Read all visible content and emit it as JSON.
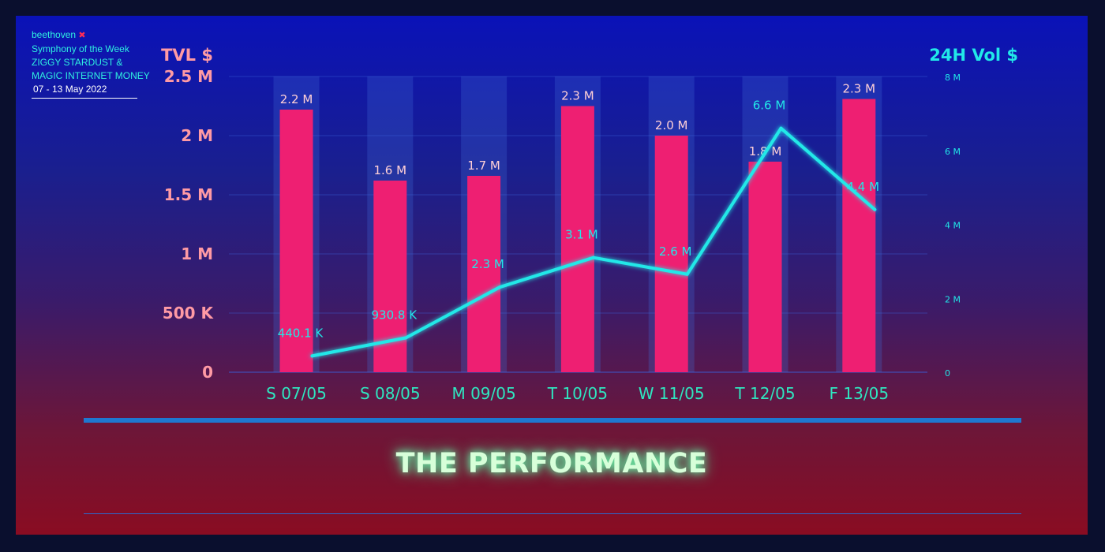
{
  "brand": {
    "name": "beethoven",
    "mark": "✖",
    "line1": "Symphony of the Week",
    "line2": "ZIGGY STARDUST &",
    "line3": "MAGIC INTERNET MONEY",
    "dates": "07 - 13 May 2022"
  },
  "footer": {
    "title": "THE PERFORMANCE"
  },
  "colors": {
    "bar": "#ee1f72",
    "line": "#21e8e8",
    "left_axis": "#ff9aa4",
    "right_axis": "#21e8e8",
    "category": "#2fe6c0",
    "bar_label": "#ffd0d6"
  },
  "chart_data": {
    "type": "bar+line",
    "categories": [
      "S 07/05",
      "S 08/05",
      "M 09/05",
      "T 10/05",
      "W 11/05",
      "T 12/05",
      "F 13/05"
    ],
    "series": [
      {
        "name": "TVL $",
        "type": "bar",
        "axis": "left",
        "values": [
          2.22,
          1.62,
          1.66,
          2.25,
          2.0,
          1.78,
          2.31
        ],
        "labels": [
          "2.2 M",
          "1.6 M",
          "1.7 M",
          "2.3 M",
          "2.0 M",
          "1.8 M",
          "2.3 M"
        ]
      },
      {
        "name": "24H Vol $",
        "type": "line",
        "axis": "right",
        "values": [
          0.4401,
          0.9308,
          2.3,
          3.1,
          2.65,
          6.6,
          4.4
        ],
        "labels": [
          "440.1 K",
          "930.8 K",
          "2.3 M",
          "3.1 M",
          "2.6 M",
          "6.6 M",
          "4.4 M"
        ]
      }
    ],
    "left_axis": {
      "title": "TVL $",
      "min": 0,
      "max": 2.5,
      "ticks": [
        0,
        0.5,
        1,
        1.5,
        2,
        2.5
      ],
      "tick_labels": [
        "0",
        "500 K",
        "1 M",
        "1.5 M",
        "2 M",
        "2.5 M"
      ]
    },
    "right_axis": {
      "title": "24H Vol $",
      "min": 0,
      "max": 8,
      "ticks": [
        0,
        2,
        4,
        6,
        8
      ],
      "tick_labels": [
        "0",
        "2 M",
        "4 M",
        "6 M",
        "8 M"
      ]
    },
    "grid": true
  }
}
